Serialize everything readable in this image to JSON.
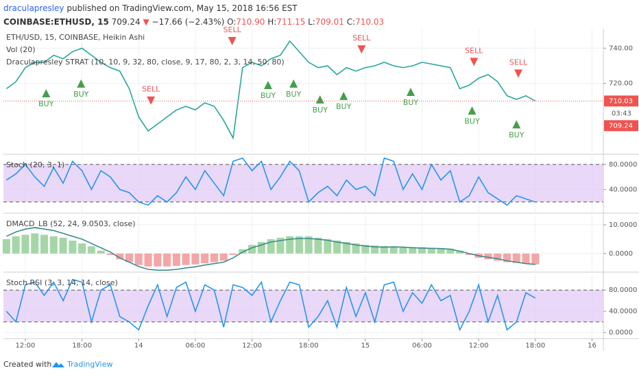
{
  "header": {
    "author": "draculapresley",
    "published": "published on TradingView.com, May 15, 2018 16:56 EST",
    "symbol": "COINBASE:ETHUSD, 15",
    "last": "709.24",
    "arrow": "▼",
    "change": "−17.66 (−2.43%)",
    "ohlc": [
      {
        "label": "O:",
        "value": "710.90"
      },
      {
        "label": "H:",
        "value": "711.15"
      },
      {
        "label": "L:",
        "value": "709.01"
      },
      {
        "label": "C:",
        "value": "710.03"
      }
    ]
  },
  "footer": {
    "created": "Created with",
    "brand": "TradingView"
  },
  "chart_data": [
    {
      "type": "line",
      "titles": [
        "ETH/USD, 15, COINBASE, Heikin Ashi",
        "Vol (20)",
        "Draculapresley STRAT (10, 10, 9, 32, 80, close, 9, 17, 80, 2, 3, 14, 50, 80)"
      ],
      "x": [
        10,
        11,
        12,
        13,
        14,
        15,
        16,
        17,
        18,
        19,
        20,
        21,
        22,
        23,
        24,
        25,
        26,
        27,
        28,
        29,
        30,
        31,
        32,
        33,
        34,
        35,
        36,
        37,
        38,
        39,
        40,
        41,
        42,
        43,
        44,
        45,
        46,
        47,
        48,
        49,
        50,
        51,
        52,
        53,
        54,
        55,
        56,
        57,
        58,
        59,
        60,
        61,
        62,
        63,
        64,
        65,
        66
      ],
      "series": [
        {
          "color": "#26a69a",
          "values": [
            717,
            721,
            729,
            732,
            732,
            736,
            734,
            738,
            740,
            736,
            732,
            729,
            727,
            717,
            701,
            693,
            697,
            701,
            705,
            707,
            705,
            709,
            707,
            699,
            689,
            729,
            732,
            730,
            734,
            736,
            744,
            738,
            732,
            729,
            730,
            725,
            729,
            727,
            729,
            730,
            732,
            730,
            729,
            730,
            732,
            731,
            730,
            729,
            717,
            719,
            723,
            725,
            721,
            713,
            711,
            713,
            710
          ]
        }
      ],
      "signals": [
        {
          "text": "BUY",
          "x": 14.2,
          "y": 708.2,
          "color": "#43a047"
        },
        {
          "text": "BUY",
          "x": 17.9,
          "y": 713.7,
          "color": "#43a047"
        },
        {
          "text": "SELL",
          "x": 25.3,
          "y": 716.5,
          "color": "#ef5350"
        },
        {
          "text": "SELL",
          "x": 33.9,
          "y": 750.2,
          "color": "#ef5350"
        },
        {
          "text": "BUY",
          "x": 37.7,
          "y": 712.9,
          "color": "#43a047"
        },
        {
          "text": "BUY",
          "x": 40.4,
          "y": 713.7,
          "color": "#43a047"
        },
        {
          "text": "BUY",
          "x": 43.2,
          "y": 704.7,
          "color": "#43a047"
        },
        {
          "text": "BUY",
          "x": 45.7,
          "y": 706.7,
          "color": "#43a047"
        },
        {
          "text": "SELL",
          "x": 47.6,
          "y": 745.5,
          "color": "#ef5350"
        },
        {
          "text": "BUY",
          "x": 52.8,
          "y": 709.0,
          "color": "#43a047"
        },
        {
          "text": "SELL",
          "x": 59.5,
          "y": 738.4,
          "color": "#ef5350"
        },
        {
          "text": "BUY",
          "x": 59.3,
          "y": 698.4,
          "color": "#43a047"
        },
        {
          "text": "SELL",
          "x": 64.2,
          "y": 731.8,
          "color": "#ef5350"
        },
        {
          "text": "BUY",
          "x": 64.0,
          "y": 690.6,
          "color": "#43a047"
        }
      ],
      "last_price": {
        "value": 710.03,
        "countdown": "03:43",
        "close": "709.24"
      },
      "xlim": [
        9.68,
        73.2
      ],
      "ylim": [
        681,
        751
      ],
      "yticks": [
        {
          "value": 720,
          "label": "720.00"
        },
        {
          "value": 740,
          "label": "740.00"
        }
      ],
      "grid": true
    },
    {
      "type": "line",
      "titles": [
        "Stoch (20, 3, 1)"
      ],
      "x": [
        10,
        11,
        12,
        13,
        14,
        15,
        16,
        17,
        18,
        19,
        20,
        21,
        22,
        23,
        24,
        25,
        26,
        27,
        28,
        29,
        30,
        31,
        32,
        33,
        34,
        35,
        36,
        37,
        38,
        39,
        40,
        41,
        42,
        43,
        44,
        45,
        46,
        47,
        48,
        49,
        50,
        51,
        52,
        53,
        54,
        55,
        56,
        57,
        58,
        59,
        60,
        61,
        62,
        63,
        64,
        65,
        66
      ],
      "series": [
        {
          "color": "#2196f3",
          "values": [
            55,
            65,
            80,
            60,
            45,
            75,
            50,
            85,
            70,
            40,
            70,
            60,
            40,
            35,
            20,
            15,
            30,
            20,
            35,
            60,
            40,
            70,
            50,
            30,
            85,
            90,
            70,
            85,
            40,
            60,
            85,
            70,
            20,
            35,
            45,
            30,
            55,
            40,
            45,
            30,
            90,
            85,
            40,
            65,
            40,
            80,
            55,
            70,
            20,
            30,
            60,
            35,
            25,
            15,
            30,
            25,
            20
          ]
        }
      ],
      "band": [
        20,
        80
      ],
      "band_color": "#e3cbf5",
      "xlim": [
        9.68,
        73.2
      ],
      "ylim": [
        1,
        93
      ],
      "yticks": [
        {
          "value": 80,
          "label": "80.0000"
        },
        {
          "value": 40,
          "label": "40.0000"
        }
      ],
      "grid": true
    },
    {
      "type": "line",
      "titles": [
        "DMACD_LB (52, 24, 9.0503, close)"
      ],
      "x": [
        10,
        11,
        12,
        13,
        14,
        15,
        16,
        17,
        18,
        19,
        20,
        21,
        22,
        23,
        24,
        25,
        26,
        27,
        28,
        29,
        30,
        31,
        32,
        33,
        34,
        35,
        36,
        37,
        38,
        39,
        40,
        41,
        42,
        43,
        44,
        45,
        46,
        47,
        48,
        49,
        50,
        51,
        52,
        53,
        54,
        55,
        56,
        57,
        58,
        59,
        60,
        61,
        62,
        63,
        64,
        65,
        66
      ],
      "series": [
        {
          "style": "histogram",
          "color": "#a5d6a7",
          "negative_color": "#f4a6a6",
          "values": [
            5,
            6,
            6.5,
            7,
            6.5,
            6,
            5.5,
            4.5,
            3.5,
            2.5,
            1,
            -0.5,
            -2,
            -3,
            -4,
            -4.5,
            -4.5,
            -4.5,
            -4.3,
            -4,
            -3.8,
            -3.4,
            -3,
            -2.5,
            -0.5,
            1.5,
            3,
            4,
            5,
            5.5,
            6,
            6,
            6,
            5.5,
            5,
            4.5,
            4,
            3.5,
            3,
            2.8,
            2.6,
            2.5,
            2.4,
            2.3,
            2.2,
            2,
            1.9,
            1.7,
            1,
            -0.5,
            -1.5,
            -2,
            -2.5,
            -3,
            -3.3,
            -3.6,
            -3.8
          ]
        },
        {
          "style": "line",
          "color": "#3b8b8f",
          "values": [
            6,
            7.5,
            8.5,
            9,
            8.5,
            8,
            7,
            6,
            5,
            3.5,
            2,
            0.5,
            -1.5,
            -3,
            -4.5,
            -5.5,
            -5.8,
            -5.8,
            -5.5,
            -5,
            -4.6,
            -4,
            -3.5,
            -3,
            -1.5,
            0.5,
            2,
            3,
            4,
            4.5,
            5,
            5.2,
            5.2,
            5,
            4.6,
            4,
            3.5,
            3,
            2.6,
            2.3,
            2.2,
            2.3,
            2.2,
            2,
            1.9,
            1.8,
            1.7,
            1.5,
            0.8,
            0,
            -0.8,
            -1.3,
            -1.8,
            -2.5,
            -3,
            -3.5,
            -3.8
          ]
        }
      ],
      "xlim": [
        9.68,
        73.2
      ],
      "ylim": [
        -6.7,
        13.3
      ],
      "yticks": [
        {
          "value": 10,
          "label": "10.0000"
        },
        {
          "value": 0,
          "label": "0.0000"
        }
      ],
      "grid": true
    },
    {
      "type": "line",
      "titles": [
        "Stoch RSI (3, 3, 14, 14, close)"
      ],
      "x": [
        10,
        11,
        12,
        13,
        14,
        15,
        16,
        17,
        18,
        19,
        20,
        21,
        22,
        23,
        24,
        25,
        26,
        27,
        28,
        29,
        30,
        31,
        32,
        33,
        34,
        35,
        36,
        37,
        38,
        39,
        40,
        41,
        42,
        43,
        44,
        45,
        46,
        47,
        48,
        49,
        50,
        51,
        52,
        53,
        54,
        55,
        56,
        57,
        58,
        59,
        60,
        61,
        62,
        63,
        64,
        65,
        66
      ],
      "series": [
        {
          "color": "#2196f3",
          "values": [
            40,
            20,
            90,
            95,
            70,
            95,
            60,
            100,
            95,
            20,
            80,
            90,
            30,
            20,
            5,
            50,
            90,
            30,
            85,
            95,
            40,
            90,
            80,
            10,
            90,
            85,
            70,
            95,
            20,
            60,
            95,
            90,
            10,
            30,
            60,
            10,
            85,
            30,
            75,
            20,
            90,
            95,
            40,
            75,
            55,
            90,
            60,
            70,
            5,
            40,
            90,
            20,
            70,
            5,
            20,
            75,
            65
          ]
        }
      ],
      "band": [
        20,
        80
      ],
      "band_color": "#e3cbf5",
      "xlim": [
        9.68,
        73.2
      ],
      "ylim": [
        -9,
        110
      ],
      "yticks": [
        {
          "value": 80,
          "label": "80.0000"
        },
        {
          "value": 40,
          "label": "40.0000"
        },
        {
          "value": 0,
          "label": "0.0000"
        }
      ],
      "xticks": [
        {
          "value": 12,
          "label": "12:00"
        },
        {
          "value": 18,
          "label": "18:00"
        },
        {
          "value": 24,
          "label": "14"
        },
        {
          "value": 30,
          "label": "06:00"
        },
        {
          "value": 36,
          "label": "12:00"
        },
        {
          "value": 42,
          "label": "18:00"
        },
        {
          "value": 48,
          "label": "15"
        },
        {
          "value": 54,
          "label": "06:00"
        },
        {
          "value": 60,
          "label": "12:00"
        },
        {
          "value": 66,
          "label": "18:00"
        },
        {
          "value": 72,
          "label": "16"
        }
      ],
      "grid": true
    }
  ]
}
